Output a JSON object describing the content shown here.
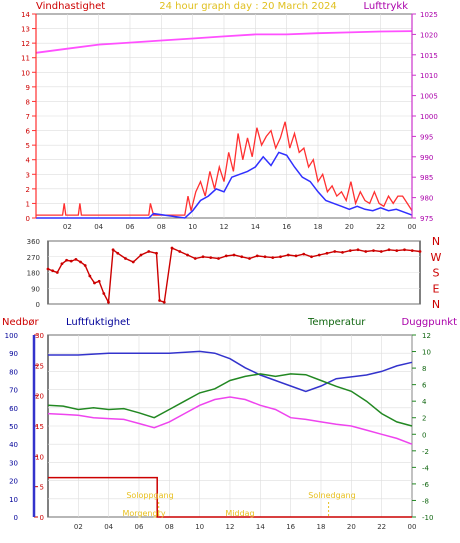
{
  "header": {
    "wind_label": "Vindhastighet",
    "title": "24 hour graph day : 20 March 2024",
    "pressure_label": "Lufttrykk"
  },
  "labels": {
    "precip": "Nedbør",
    "humidity": "Luftfuktighet",
    "temperature": "Temperatur",
    "dewpoint": "Duggpunkt",
    "sunrise": "Soloppgang",
    "sunset": "Solnedgang",
    "dawn": "Morgengry",
    "midday": "Middag"
  },
  "chart_data": [
    {
      "type": "line",
      "panel": "wind_pressure",
      "x_ticks": [
        "02",
        "04",
        "06",
        "08",
        "10",
        "12",
        "14",
        "16",
        "18",
        "20",
        "22",
        "00"
      ],
      "xlim": [
        0,
        24
      ],
      "y_left": {
        "label": "Vindhastighet",
        "lim": [
          0,
          14
        ],
        "ticks": [
          0,
          1,
          2,
          3,
          4,
          5,
          6,
          7,
          8,
          9,
          10,
          11,
          12,
          13,
          14
        ]
      },
      "y_right": {
        "label": "Lufttrykk",
        "lim": [
          975,
          1025
        ],
        "ticks": [
          975,
          980,
          985,
          990,
          995,
          1000,
          1005,
          1010,
          1015,
          1020,
          1025
        ]
      },
      "colors": {
        "gust": "#ff3030",
        "wind": "#3030ff",
        "pressure": "#ff50ff",
        "axis_left": "#ff3030",
        "axis_right": "#cc33cc"
      },
      "series": [
        {
          "name": "gust",
          "axis": "left",
          "x": [
            0,
            1.7,
            1.8,
            1.9,
            2.7,
            2.8,
            2.9,
            3.5,
            7.2,
            7.3,
            7.5,
            9.5,
            9.7,
            9.9,
            10.2,
            10.5,
            10.8,
            11.1,
            11.4,
            11.7,
            12.0,
            12.3,
            12.6,
            12.9,
            13.2,
            13.5,
            13.8,
            14.1,
            14.4,
            14.7,
            15.0,
            15.3,
            15.6,
            15.9,
            16.2,
            16.5,
            16.8,
            17.1,
            17.4,
            17.7,
            18.0,
            18.3,
            18.6,
            18.9,
            19.2,
            19.5,
            19.8,
            20.1,
            20.4,
            20.7,
            21.0,
            21.3,
            21.6,
            21.9,
            22.2,
            22.5,
            22.8,
            23.1,
            23.4,
            23.7,
            24.0
          ],
          "values": [
            0.2,
            0.2,
            1,
            0.2,
            0.2,
            1,
            0.2,
            0.2,
            0.2,
            1,
            0.2,
            0.2,
            1.5,
            0.5,
            1.8,
            2.5,
            1.5,
            3.2,
            2.0,
            3.5,
            2.5,
            4.5,
            3.2,
            5.8,
            4.0,
            5.5,
            4.2,
            6.2,
            5.0,
            5.6,
            6.0,
            4.8,
            5.5,
            6.6,
            4.8,
            5.8,
            4.5,
            4.8,
            3.5,
            4.0,
            2.5,
            3.0,
            1.8,
            2.2,
            1.5,
            1.8,
            1.2,
            2.5,
            1.0,
            1.8,
            1.2,
            1.0,
            1.8,
            1.0,
            0.8,
            1.5,
            1.0,
            1.5,
            1.5,
            1.0,
            0.5
          ]
        },
        {
          "name": "wind",
          "axis": "left",
          "x": [
            0,
            7.2,
            7.5,
            9.5,
            10.0,
            10.5,
            11.0,
            11.5,
            12.0,
            12.5,
            13.0,
            13.5,
            14.0,
            14.5,
            15.0,
            15.5,
            16.0,
            16.5,
            17.0,
            17.5,
            18.0,
            18.5,
            19.0,
            19.5,
            20.0,
            20.5,
            21.0,
            21.5,
            22.0,
            22.5,
            23.0,
            23.5,
            24.0
          ],
          "values": [
            0,
            0,
            0.3,
            0,
            0.5,
            1.2,
            1.5,
            2.0,
            1.8,
            2.8,
            3.0,
            3.2,
            3.5,
            4.2,
            3.6,
            4.5,
            4.3,
            3.5,
            2.8,
            2.5,
            1.8,
            1.2,
            1.0,
            0.8,
            0.6,
            0.8,
            0.6,
            0.5,
            0.7,
            0.5,
            0.6,
            0.4,
            0.2
          ]
        },
        {
          "name": "pressure",
          "axis": "right",
          "x": [
            0,
            2,
            4,
            6,
            8,
            10,
            12,
            14,
            16,
            18,
            20,
            22,
            24
          ],
          "values": [
            1015.5,
            1016.5,
            1017.5,
            1018.0,
            1018.5,
            1019.0,
            1019.5,
            1020.0,
            1020.0,
            1020.3,
            1020.5,
            1020.7,
            1020.8
          ]
        }
      ],
      "grid": true
    },
    {
      "type": "scatter",
      "panel": "wind_direction",
      "x_ticks": [
        "02",
        "04",
        "06",
        "08",
        "10",
        "12",
        "14",
        "16",
        "18",
        "20",
        "22",
        "00"
      ],
      "xlim": [
        0,
        24
      ],
      "ylim": [
        0,
        360
      ],
      "y_ticks": [
        0,
        90,
        180,
        270,
        360
      ],
      "compass": [
        "N",
        "W",
        "S",
        "E",
        "N"
      ],
      "color": "#cc0000",
      "series": [
        {
          "name": "direction",
          "x": [
            0.0,
            0.3,
            0.6,
            0.9,
            1.2,
            1.5,
            1.8,
            2.1,
            2.4,
            2.7,
            3.0,
            3.3,
            3.6,
            3.9,
            4.2,
            4.5,
            5.0,
            5.5,
            6.0,
            6.5,
            7.0,
            7.2,
            7.5,
            8.0,
            8.5,
            9.0,
            9.5,
            10.0,
            10.5,
            11.0,
            11.5,
            12.0,
            12.5,
            13.0,
            13.5,
            14.0,
            14.5,
            15.0,
            15.5,
            16.0,
            16.5,
            17.0,
            17.5,
            18.0,
            18.5,
            19.0,
            19.5,
            20.0,
            20.5,
            21.0,
            21.5,
            22.0,
            22.5,
            23.0,
            23.5,
            24.0
          ],
          "values": [
            200,
            190,
            180,
            230,
            250,
            245,
            255,
            240,
            220,
            160,
            120,
            130,
            60,
            10,
            310,
            290,
            260,
            240,
            280,
            300,
            290,
            20,
            10,
            320,
            300,
            280,
            260,
            270,
            265,
            260,
            275,
            280,
            270,
            260,
            275,
            270,
            265,
            270,
            280,
            275,
            285,
            270,
            280,
            290,
            300,
            295,
            305,
            310,
            300,
            305,
            300,
            310,
            305,
            310,
            305,
            300
          ]
        }
      ],
      "grid": true
    },
    {
      "type": "line",
      "panel": "temperature_humidity",
      "x_ticks": [
        "02",
        "04",
        "06",
        "08",
        "10",
        "12",
        "14",
        "16",
        "18",
        "20",
        "22",
        "00"
      ],
      "xlim": [
        0,
        24
      ],
      "y_left_humidity": {
        "label": "Luftfuktighet",
        "lim": [
          0,
          100
        ],
        "ticks": [
          0,
          10,
          20,
          30,
          40,
          50,
          60,
          70,
          80,
          90,
          100
        ]
      },
      "y_left_precip": {
        "label": "Nedbør",
        "lim": [
          0,
          30
        ],
        "ticks": [
          0,
          5,
          10,
          15,
          20,
          25,
          30
        ]
      },
      "y_right": {
        "label": "Temperatur",
        "lim": [
          -10,
          12
        ],
        "ticks": [
          -10,
          -8,
          -6,
          -4,
          -2,
          0,
          2,
          4,
          6,
          8,
          10,
          12
        ]
      },
      "colors": {
        "humidity": "#3333cc",
        "temperature": "#228822",
        "dewpoint": "#ee44ee",
        "precip": "#cc0000",
        "sun": "#e8c020"
      },
      "series": [
        {
          "name": "humidity",
          "axis": "humidity",
          "x": [
            0,
            2,
            4,
            6,
            8,
            10,
            11,
            12,
            13,
            14,
            15,
            16,
            17,
            18,
            19,
            20,
            21,
            22,
            23,
            24
          ],
          "values": [
            89,
            89,
            90,
            90,
            90,
            91,
            90,
            87,
            82,
            78,
            75,
            72,
            69,
            72,
            76,
            77,
            78,
            80,
            83,
            85
          ]
        },
        {
          "name": "temperature",
          "axis": "right",
          "x": [
            0,
            1,
            2,
            3,
            4,
            5,
            6,
            7,
            8,
            9,
            10,
            11,
            12,
            13,
            14,
            15,
            16,
            17,
            18,
            19,
            20,
            21,
            22,
            23,
            24
          ],
          "values": [
            3.5,
            3.4,
            3.0,
            3.2,
            3.0,
            3.1,
            2.6,
            2.0,
            3.0,
            4.0,
            5.0,
            5.5,
            6.5,
            7.0,
            7.3,
            7.0,
            7.3,
            7.2,
            6.5,
            5.8,
            5.2,
            4.0,
            2.5,
            1.5,
            1.0
          ]
        },
        {
          "name": "dewpoint",
          "axis": "right",
          "x": [
            0,
            1,
            2,
            3,
            4,
            5,
            6,
            7,
            8,
            9,
            10,
            11,
            12,
            13,
            14,
            15,
            16,
            17,
            18,
            19,
            20,
            21,
            22,
            23,
            24
          ],
          "values": [
            2.5,
            2.4,
            2.3,
            2.0,
            1.9,
            1.8,
            1.3,
            0.8,
            1.5,
            2.5,
            3.5,
            4.2,
            4.5,
            4.2,
            3.5,
            3.0,
            2.0,
            1.8,
            1.5,
            1.2,
            1.0,
            0.5,
            0.0,
            -0.5,
            -1.2
          ]
        },
        {
          "name": "precip",
          "axis": "precip",
          "x": [
            0,
            7.2,
            7.2,
            24
          ],
          "values": [
            6.5,
            6.5,
            0,
            0
          ]
        }
      ],
      "sun_markers": [
        7.3,
        18.5
      ],
      "grid": true
    }
  ]
}
